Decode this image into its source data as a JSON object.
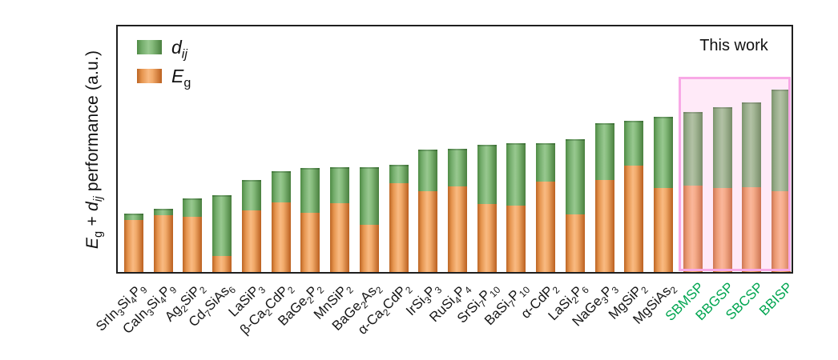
{
  "figure": {
    "y_axis_label_plain": "Eg + dij performance (a.u.)",
    "y_axis_label_segments": [
      {
        "text": "E",
        "italic": true
      },
      {
        "text": "g",
        "sub": true
      },
      {
        "text": " + "
      },
      {
        "text": "d",
        "italic": true
      },
      {
        "text": "ij",
        "italic": true,
        "sub": true
      },
      {
        "text": " performance (a.u.)"
      }
    ],
    "legend": [
      {
        "key": "dij",
        "plain": "dij",
        "segments": [
          {
            "text": "d",
            "italic": true
          },
          {
            "text": "ij",
            "italic": true,
            "sub": true
          }
        ]
      },
      {
        "key": "eg",
        "plain": "Eg",
        "segments": [
          {
            "text": "E",
            "italic": true
          },
          {
            "text": "g",
            "sub": true
          }
        ]
      }
    ],
    "colors": {
      "dij_green": "#7ab578",
      "eg_orange": "#f0a466",
      "highlight_box_border": "#f8a9e6",
      "highlight_box_fill": "#fdeefb",
      "highlight_label_green": "#00a550",
      "axis": "#1f1f1f"
    }
  },
  "chart_data": {
    "type": "bar",
    "stacked": true,
    "title": "",
    "xlabel": "",
    "ylabel": "Eg + dij performance (a.u.)",
    "ylim": [
      0,
      100
    ],
    "yticks": [],
    "grid": false,
    "legend_position": "upper-left",
    "categories": [
      "SrIn₃Si₄P₉",
      "CaIn₃Si₄P₉",
      "Ag₂SiP₂",
      "Cd₇SiAs₆",
      "LaSiP₃",
      "β-Ca₂CdP₂",
      "BaGe₂P₂",
      "MnSiP₂",
      "BaGe₂As₂",
      "α-Ca₂CdP₂",
      "IrSi₃P₃",
      "RuSi₄P₄",
      "SrSi₇P₁₀",
      "BaSi₇P₁₀",
      "α-CdP₂",
      "LaSi₂P₆",
      "NaGe₃P₃",
      "MgSiP₂",
      "MgSiAs₂",
      "SBMSP",
      "BBGSP",
      "SBCSP",
      "BBISP"
    ],
    "series": [
      {
        "name": "Eg",
        "color": "#f0a466",
        "values": [
          20.9,
          22.8,
          22.2,
          6.4,
          24.8,
          28.0,
          23.8,
          27.7,
          19.0,
          35.7,
          32.5,
          34.4,
          27.3,
          26.7,
          36.3,
          23.2,
          37.0,
          42.8,
          33.8,
          34.7,
          33.8,
          34.1,
          32.5
        ]
      },
      {
        "name": "dij",
        "color": "#7ab578",
        "values": [
          2.6,
          2.6,
          7.4,
          24.4,
          12.2,
          12.5,
          18.0,
          14.5,
          23.2,
          7.4,
          16.7,
          15.1,
          23.8,
          25.1,
          15.4,
          30.2,
          22.8,
          18.0,
          28.6,
          29.6,
          32.5,
          34.1,
          40.8
        ]
      }
    ],
    "highlight": {
      "label": "This work",
      "categories": [
        "SBMSP",
        "BBGSP",
        "SBCSP",
        "BBISP"
      ],
      "label_color": "#00a550"
    }
  }
}
